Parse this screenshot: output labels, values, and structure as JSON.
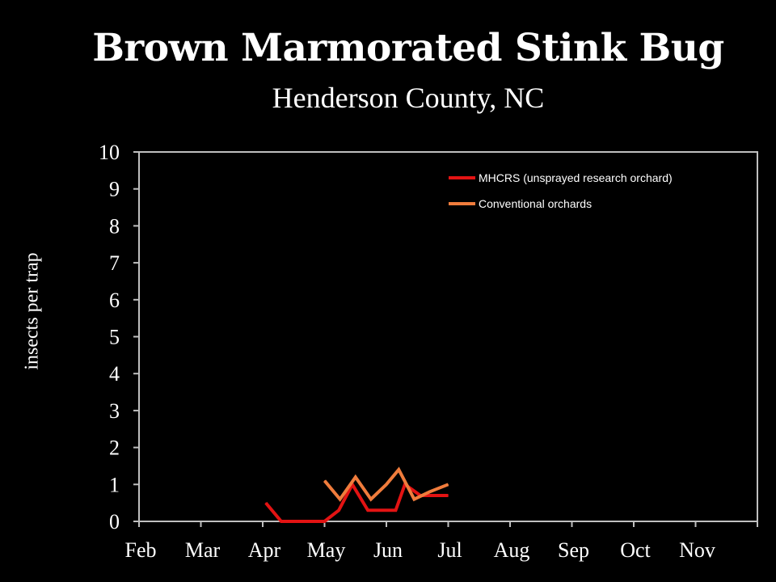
{
  "chart_data": {
    "type": "line",
    "title": "Brown Marmorated Stink Bug",
    "subtitle": "Henderson County, NC",
    "ylabel": "insects per trap",
    "xlabel": "",
    "ylim": [
      0,
      10
    ],
    "y_ticks": [
      "0",
      "1",
      "2",
      "3",
      "4",
      "5",
      "6",
      "7",
      "8",
      "9",
      "10"
    ],
    "x_ticks": [
      "Feb",
      "Mar",
      "Apr",
      "May",
      "Jun",
      "Jul",
      "Aug",
      "Sep",
      "Oct",
      "Nov"
    ],
    "x_domain": [
      0,
      10
    ],
    "grid": false,
    "legend_position": "top-right",
    "series": [
      {
        "name": "MHCRS (unsprayed research orchard)",
        "color": "#e31313",
        "x": [
          2.05,
          2.3,
          2.55,
          2.8,
          3.0,
          3.23,
          3.45,
          3.7,
          4.0,
          4.15,
          4.3,
          4.55,
          4.8,
          5.0
        ],
        "y": [
          0.5,
          0.0,
          0.0,
          0.0,
          0.0,
          0.3,
          1.0,
          0.3,
          0.3,
          0.3,
          1.0,
          0.7,
          0.7,
          0.7
        ]
      },
      {
        "name": "Conventional orchards",
        "color": "#f07c3c",
        "x": [
          3.0,
          3.25,
          3.5,
          3.75,
          4.0,
          4.2,
          4.45,
          4.7,
          5.0
        ],
        "y": [
          1.1,
          0.6,
          1.2,
          0.6,
          1.0,
          1.4,
          0.6,
          0.8,
          1.0
        ]
      }
    ]
  }
}
